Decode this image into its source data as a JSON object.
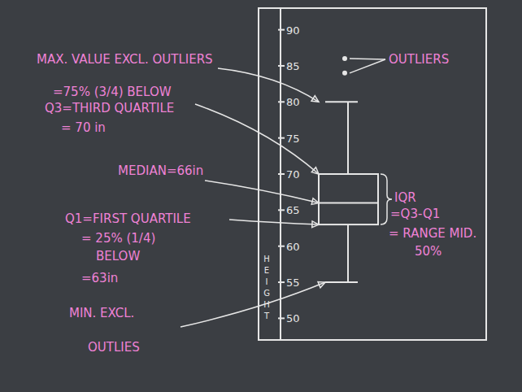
{
  "chart_data": {
    "type": "box",
    "ylabel": "HEIGHT",
    "ylim": [
      47,
      93
    ],
    "yticks": [
      50,
      55,
      60,
      65,
      70,
      75,
      80,
      85,
      90
    ],
    "grid": false,
    "color": "#e6e6e6",
    "boxes": [
      {
        "whisker_low": 55,
        "q1": 63,
        "median": 66,
        "q3": 70,
        "whisker_high": 80,
        "outliers": [
          86,
          84
        ]
      }
    ],
    "annotations": [
      [
        "MAX. VALUE EXCL. OUTLIERS"
      ],
      [
        "=75% (3/4) BELOW",
        "Q3=THIRD QUARTILE",
        "= 70 in"
      ],
      [
        "MEDIAN=66in"
      ],
      [
        "Q1=FIRST QUARTILE",
        "= 25% (1/4)",
        "BELOW",
        "=63in"
      ],
      [
        "MIN. EXCL.",
        "OUTLIES"
      ],
      [
        "OUTLIERS"
      ],
      [
        "IQR",
        "=Q3-Q1",
        "= RANGE MID.",
        "50%"
      ]
    ]
  }
}
